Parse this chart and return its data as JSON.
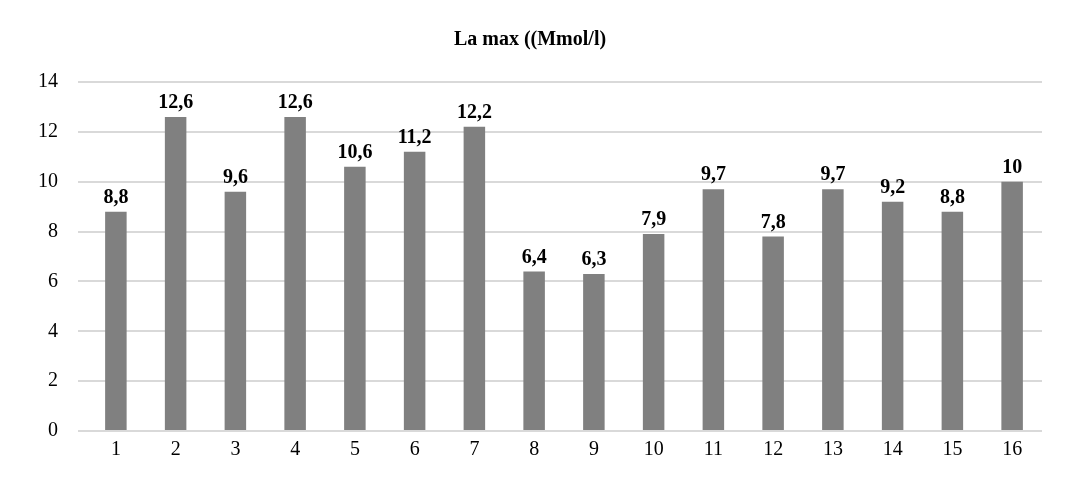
{
  "chart_data": {
    "type": "bar",
    "title": "La max ((Mmol/l)",
    "categories": [
      "1",
      "2",
      "3",
      "4",
      "5",
      "6",
      "7",
      "8",
      "9",
      "10",
      "11",
      "12",
      "13",
      "14",
      "15",
      "16"
    ],
    "values": [
      8.8,
      12.6,
      9.6,
      12.6,
      10.6,
      11.2,
      12.2,
      6.4,
      6.3,
      7.9,
      9.7,
      7.8,
      9.7,
      9.2,
      8.8,
      10
    ],
    "value_labels": [
      "8,8",
      "12,6",
      "9,6",
      "12,6",
      "10,6",
      "11,2",
      "12,2",
      "6,4",
      "6,3",
      "7,9",
      "9,7",
      "7,8",
      "9,7",
      "9,2",
      "8,8",
      "10"
    ],
    "color": "#808080",
    "ylim": [
      0,
      14
    ],
    "yticks": [
      0,
      2,
      4,
      6,
      8,
      10,
      12,
      14
    ],
    "grid": "y",
    "legend": false
  }
}
